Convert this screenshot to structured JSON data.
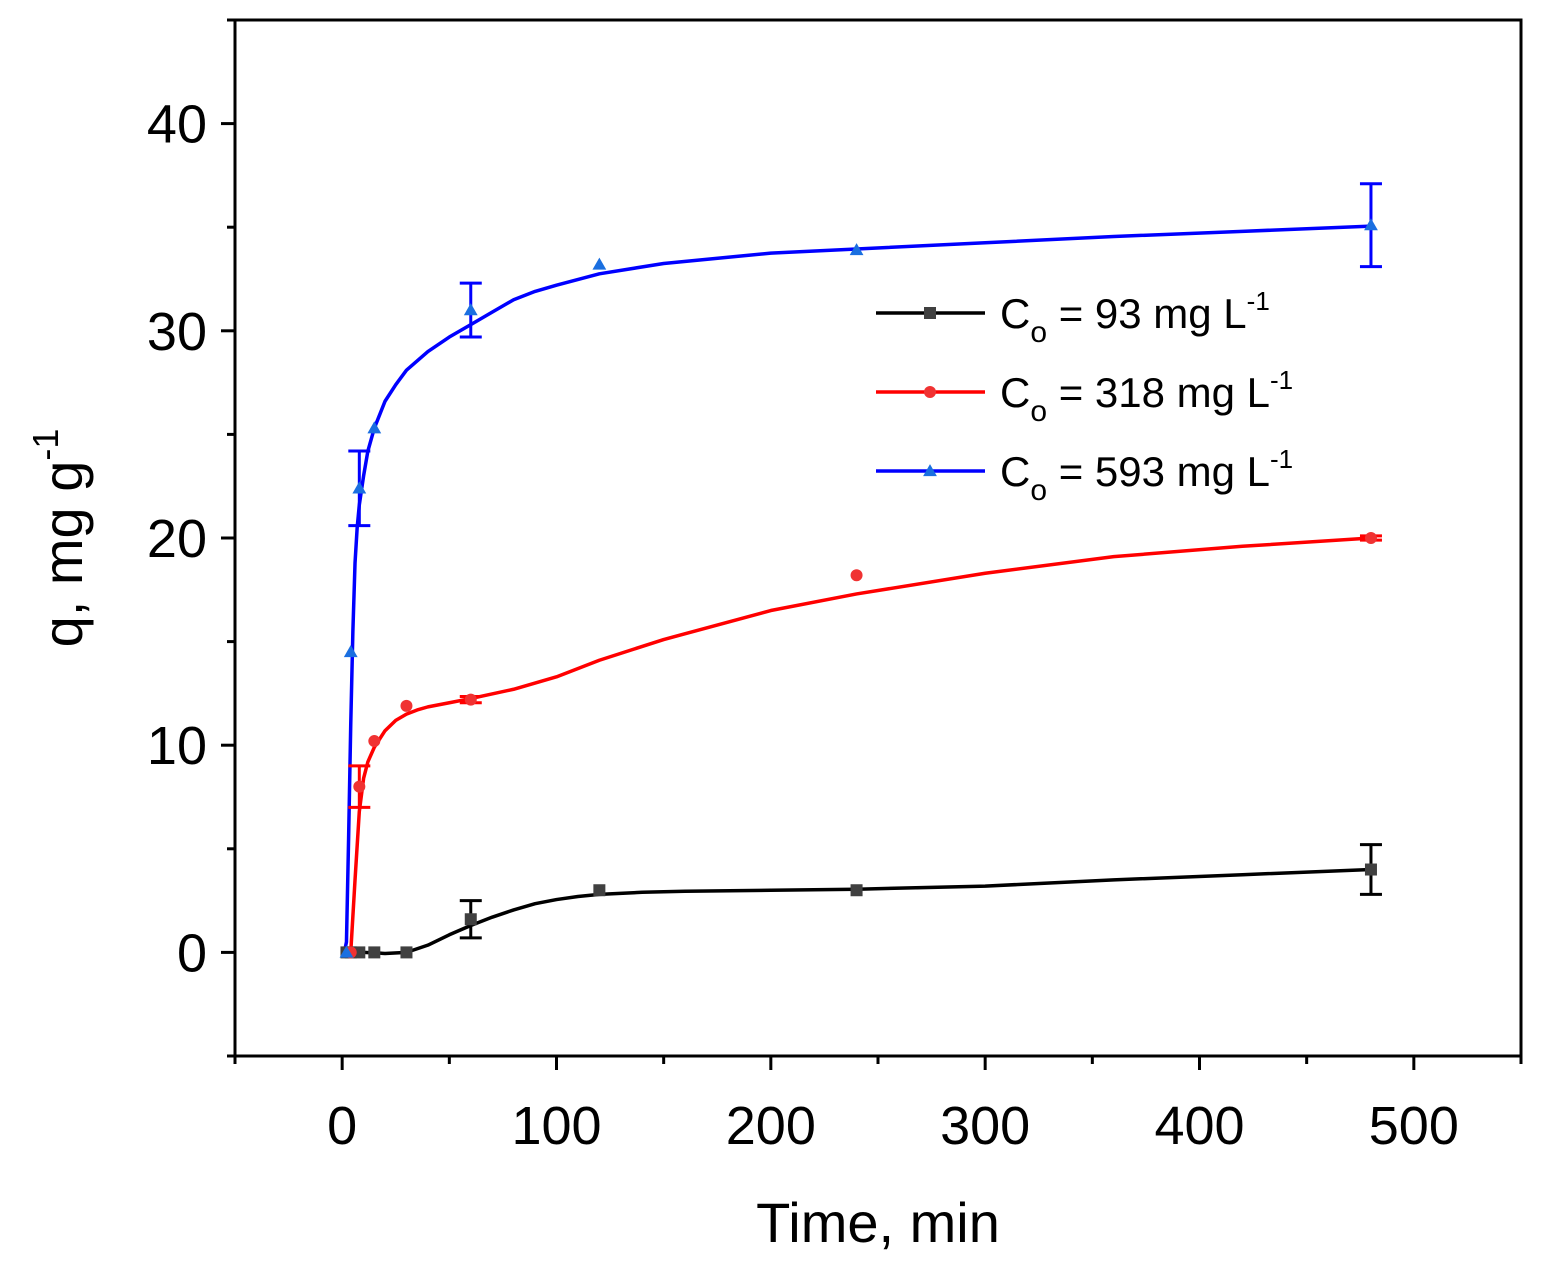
{
  "chart_data": {
    "type": "line",
    "title": "",
    "xlabel": "Time, min",
    "ylabel": {
      "base": "q, mg g",
      "sup": "-1"
    },
    "xlim": [
      -50,
      550
    ],
    "ylim": [
      -5,
      45
    ],
    "x_ticks": [
      0,
      100,
      200,
      300,
      400,
      500
    ],
    "y_ticks": [
      0,
      10,
      20,
      30,
      40
    ],
    "x_minor_ticks": [
      -50,
      50,
      150,
      250,
      350,
      450,
      550
    ],
    "y_minor_ticks": [
      -5,
      5,
      15,
      25,
      35,
      45
    ],
    "grid": false,
    "legend_position": "right-upper",
    "series": [
      {
        "name": "Co = 93 mg L-1",
        "legend": {
          "prefix": "C",
          "sub": "o",
          "text": " = 93 mg L",
          "sup": "-1"
        },
        "color": "#000000",
        "marker_color": "#404040",
        "marker": "square",
        "x": [
          2,
          4,
          8,
          15,
          30,
          60,
          120,
          240,
          480
        ],
        "y": [
          0,
          0,
          0,
          0,
          0,
          1.6,
          3.0,
          3.0,
          4.0
        ],
        "err": [
          0,
          0,
          0,
          0,
          0,
          0.9,
          0,
          0,
          1.2
        ],
        "fit_x": [
          2,
          10,
          20,
          30,
          40,
          50,
          60,
          70,
          80,
          90,
          100,
          110,
          120,
          140,
          160,
          200,
          240,
          300,
          360,
          420,
          480
        ],
        "fit_y": [
          0,
          0,
          -0.05,
          0,
          0.35,
          0.85,
          1.3,
          1.7,
          2.05,
          2.35,
          2.55,
          2.7,
          2.8,
          2.9,
          2.95,
          3.0,
          3.05,
          3.2,
          3.5,
          3.75,
          4.0
        ]
      },
      {
        "name": "Co = 318 mg L-1",
        "legend": {
          "prefix": "C",
          "sub": "o",
          "text": " = 318 mg L",
          "sup": "-1"
        },
        "color": "#ff0000",
        "marker_color": "#f03232",
        "marker": "circle",
        "x": [
          4,
          8,
          15,
          30,
          60,
          240,
          480
        ],
        "y": [
          0,
          8.0,
          10.2,
          11.9,
          12.2,
          18.2,
          20.0
        ],
        "err": [
          0,
          1.0,
          0,
          0,
          0.15,
          0,
          0.1
        ],
        "fit_x": [
          4,
          6,
          8,
          10,
          12,
          15,
          20,
          25,
          30,
          35,
          40,
          50,
          60,
          80,
          100,
          120,
          150,
          200,
          240,
          300,
          360,
          420,
          480
        ],
        "fit_y": [
          0,
          3.5,
          6.8,
          8.4,
          9.2,
          9.9,
          10.7,
          11.2,
          11.5,
          11.7,
          11.85,
          12.05,
          12.25,
          12.7,
          13.3,
          14.1,
          15.1,
          16.5,
          17.3,
          18.3,
          19.1,
          19.6,
          20.0
        ]
      },
      {
        "name": "Co = 593 mg L-1",
        "legend": {
          "prefix": "C",
          "sub": "o",
          "text": " = 593 mg L",
          "sup": "-1"
        },
        "color": "#0000ff",
        "marker_color": "#1a6fe0",
        "marker": "triangle",
        "x": [
          2,
          4,
          8,
          15,
          60,
          120,
          240,
          480
        ],
        "y": [
          0,
          14.5,
          22.4,
          25.3,
          31.0,
          33.2,
          33.9,
          35.1
        ],
        "err": [
          0,
          0,
          1.8,
          0,
          1.3,
          0,
          0,
          2.0
        ],
        "fit_x": [
          1,
          2,
          3,
          4,
          5,
          6,
          7,
          8,
          10,
          12,
          15,
          20,
          25,
          30,
          40,
          50,
          60,
          70,
          80,
          90,
          100,
          120,
          150,
          200,
          240,
          300,
          360,
          420,
          480
        ],
        "fit_y": [
          0,
          0.5,
          5.5,
          11.0,
          15.5,
          18.8,
          20.5,
          21.6,
          23.0,
          24.2,
          25.3,
          26.6,
          27.4,
          28.1,
          29.0,
          29.7,
          30.3,
          30.9,
          31.5,
          31.9,
          32.2,
          32.75,
          33.25,
          33.75,
          33.95,
          34.25,
          34.55,
          34.8,
          35.05
        ]
      }
    ]
  }
}
